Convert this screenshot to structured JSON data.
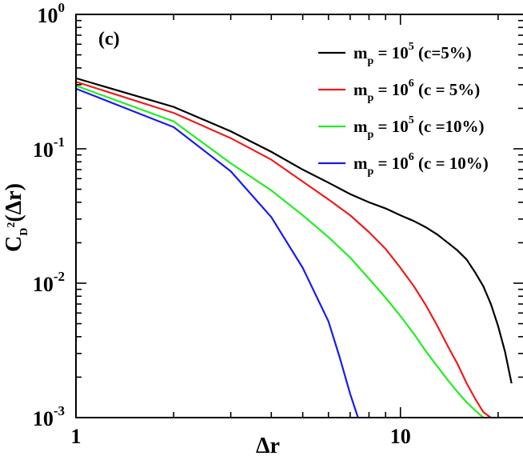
{
  "chart_data": {
    "type": "line",
    "title": "",
    "panel_label": "(c)",
    "xlabel": "Δr",
    "ylabel": {
      "base": "C",
      "sub": "D",
      "sup": "2",
      "tail": "(Δr)"
    },
    "x_scale": "log",
    "y_scale": "log",
    "xlim": [
      1,
      24
    ],
    "ylim": [
      0.001,
      1
    ],
    "x_ticks": [
      {
        "value": 1,
        "label": "1"
      },
      {
        "value": 10,
        "label": "10"
      }
    ],
    "y_ticks": [
      {
        "value": 1,
        "base": "10",
        "exp": "0"
      },
      {
        "value": 0.1,
        "base": "10",
        "exp": "-1"
      },
      {
        "value": 0.01,
        "base": "10",
        "exp": "-2"
      },
      {
        "value": 0.001,
        "base": "10",
        "exp": "-3"
      }
    ],
    "grid": false,
    "legend_position": "top-right",
    "series": [
      {
        "color": "#000000",
        "label": {
          "pre": "m",
          "sub": "p",
          "mid": " = 10",
          "sup": "5",
          "post": " (c=5%)"
        },
        "points": [
          [
            1,
            0.335
          ],
          [
            2,
            0.205
          ],
          [
            3,
            0.135
          ],
          [
            4,
            0.095
          ],
          [
            5,
            0.07
          ],
          [
            6,
            0.056
          ],
          [
            7,
            0.046
          ],
          [
            8,
            0.04
          ],
          [
            9,
            0.036
          ],
          [
            10,
            0.032
          ],
          [
            11,
            0.029
          ],
          [
            12,
            0.026
          ],
          [
            13,
            0.023
          ],
          [
            14,
            0.02
          ],
          [
            15,
            0.0175
          ],
          [
            16,
            0.015
          ],
          [
            17,
            0.012
          ],
          [
            18,
            0.0095
          ],
          [
            19,
            0.007
          ],
          [
            20,
            0.0048
          ],
          [
            21,
            0.0031
          ],
          [
            22,
            0.0018
          ]
        ]
      },
      {
        "color": "#ee1c1c",
        "label": {
          "pre": "m",
          "sub": "p",
          "mid": " = 10",
          "sup": "6",
          "post": " (c = 5%)"
        },
        "points": [
          [
            1,
            0.315
          ],
          [
            2,
            0.185
          ],
          [
            3,
            0.12
          ],
          [
            4,
            0.083
          ],
          [
            5,
            0.057
          ],
          [
            6,
            0.042
          ],
          [
            7,
            0.032
          ],
          [
            8,
            0.024
          ],
          [
            9,
            0.018
          ],
          [
            10,
            0.013
          ],
          [
            11,
            0.0095
          ],
          [
            12,
            0.0068
          ],
          [
            13,
            0.0048
          ],
          [
            14,
            0.0034
          ],
          [
            15,
            0.0025
          ],
          [
            16,
            0.0018
          ],
          [
            17,
            0.00138
          ],
          [
            18,
            0.0011
          ],
          [
            19,
            0.001
          ]
        ]
      },
      {
        "color": "#22ee22",
        "label": {
          "pre": "m",
          "sub": "p",
          "mid": " = 10",
          "sup": "5",
          "post": " (c =10%)"
        },
        "points": [
          [
            1,
            0.295
          ],
          [
            2,
            0.16
          ],
          [
            3,
            0.078
          ],
          [
            4,
            0.049
          ],
          [
            5,
            0.032
          ],
          [
            6,
            0.022
          ],
          [
            7,
            0.0155
          ],
          [
            8,
            0.0108
          ],
          [
            9,
            0.0078
          ],
          [
            10,
            0.0057
          ],
          [
            11,
            0.0042
          ],
          [
            12,
            0.0031
          ],
          [
            13,
            0.0024
          ],
          [
            14,
            0.0019
          ],
          [
            15,
            0.00155
          ],
          [
            16,
            0.0013
          ],
          [
            17,
            0.00113
          ],
          [
            18,
            0.001
          ]
        ]
      },
      {
        "color": "#1a1aee",
        "label": {
          "pre": "m",
          "sub": "p",
          "mid": " = 10",
          "sup": "6",
          "post": " (c = 10%)"
        },
        "points": [
          [
            1,
            0.28
          ],
          [
            2,
            0.145
          ],
          [
            3,
            0.068
          ],
          [
            4,
            0.031
          ],
          [
            5,
            0.013
          ],
          [
            6,
            0.0052
          ],
          [
            6.5,
            0.0028
          ],
          [
            7,
            0.0015
          ],
          [
            7.4,
            0.001
          ]
        ]
      }
    ]
  }
}
